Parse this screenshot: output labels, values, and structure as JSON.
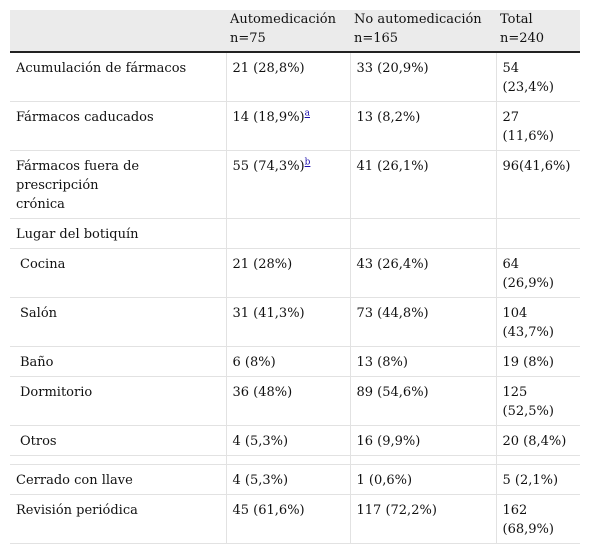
{
  "headers": [
    {
      "line1": "",
      "line2": ""
    },
    {
      "line1": "Automedicación",
      "line2": "n=75"
    },
    {
      "line1": "No automedicación",
      "line2": "n=165"
    },
    {
      "line1": "Total",
      "line2": "n=240"
    }
  ],
  "rows": [
    {
      "label": "Acumulación de fármacos",
      "auto": "21 (28,8%)",
      "auto_sup": "",
      "no_auto": "33 (20,9%)",
      "total_a": "54",
      "total_b": "(23,4%)"
    },
    {
      "label": "Fármacos caducados",
      "auto": "14 (18,9%)",
      "auto_sup": "a",
      "no_auto": "13 (8,2%)",
      "total_a": "27",
      "total_b": "(11,6%)"
    },
    {
      "label_a": "Fármacos fuera de prescripción",
      "label_b": "crónica",
      "auto": "55 (74,3%)",
      "auto_sup": "b",
      "no_auto": "41 (26,1%)",
      "total_a": "96(41,6%)",
      "total_b": ""
    },
    {
      "label": "Lugar del botiquín",
      "auto": "",
      "auto_sup": "",
      "no_auto": "",
      "total_a": "",
      "total_b": ""
    },
    {
      "label": "Cocina",
      "auto": "21 (28%)",
      "auto_sup": "",
      "no_auto": "43 (26,4%)",
      "total_a": "64",
      "total_b": "(26,9%)"
    },
    {
      "label": "Salón",
      "auto": "31 (41,3%)",
      "auto_sup": "",
      "no_auto": "73 (44,8%)",
      "total_a": "104",
      "total_b": "(43,7%)"
    },
    {
      "label": "Baño",
      "auto": "6 (8%)",
      "auto_sup": "",
      "no_auto": "13 (8%)",
      "total_a": "19 (8%)",
      "total_b": ""
    },
    {
      "label": "Dormitorio",
      "auto": "36 (48%)",
      "auto_sup": "",
      "no_auto": "89 (54,6%)",
      "total_a": "125",
      "total_b": "(52,5%)"
    },
    {
      "label": "Otros",
      "auto": "4 (5,3%)",
      "auto_sup": "",
      "no_auto": "16 (9,9%)",
      "total_a": "20 (8,4%)",
      "total_b": ""
    },
    {
      "label": "Cerrado con llave",
      "auto": "4 (5,3%)",
      "auto_sup": "",
      "no_auto": "1 (0,6%)",
      "total_a": "5 (2,1%)",
      "total_b": ""
    },
    {
      "label": "Revisión periódica",
      "auto": "45 (61,6%)",
      "auto_sup": "",
      "no_auto": "117 (72,2%)",
      "total_a": "162",
      "total_b": "(68,9%)"
    }
  ]
}
